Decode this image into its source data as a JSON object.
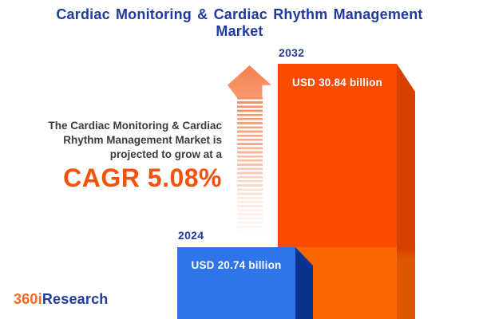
{
  "title_line1": "Cardiac Monitoring & Cardiac Rhythm Management",
  "title_line2": "Market",
  "description": {
    "line1": "The Cardiac Monitoring & Cardiac",
    "line2": "Rhythm Management Market is",
    "line3": "projected to grow at a",
    "cagr": "CAGR 5.08%"
  },
  "chart_data": {
    "type": "bar",
    "title": "Cardiac Monitoring & Cardiac Rhythm Management Market",
    "categories": [
      "2024",
      "2032"
    ],
    "values": [
      20.74,
      30.84
    ],
    "unit": "USD billion",
    "value_labels": [
      "USD 20.74 billion",
      "USD 30.84 billion"
    ],
    "cagr_percent": 5.08,
    "legend_position": "none",
    "grid": false,
    "bar_colors": [
      "#2E74EA",
      "#FB4B00"
    ],
    "bar_side_colors": [
      "#0A3390",
      "#D64100"
    ],
    "annotations": [
      "growth arrow pointing up between text and bars"
    ]
  },
  "colors": {
    "title_blue": "#1E3A9E",
    "cagr_orange": "#F4510B",
    "arrow_orange": "#F68C5C",
    "orange_bar_lower": "#FC6800",
    "logo_orange": "#F26A22",
    "logo_blue": "#1F3C9E",
    "body_text": "#3C3C3C"
  },
  "logo": {
    "part1": "360i",
    "part2": "Research"
  }
}
